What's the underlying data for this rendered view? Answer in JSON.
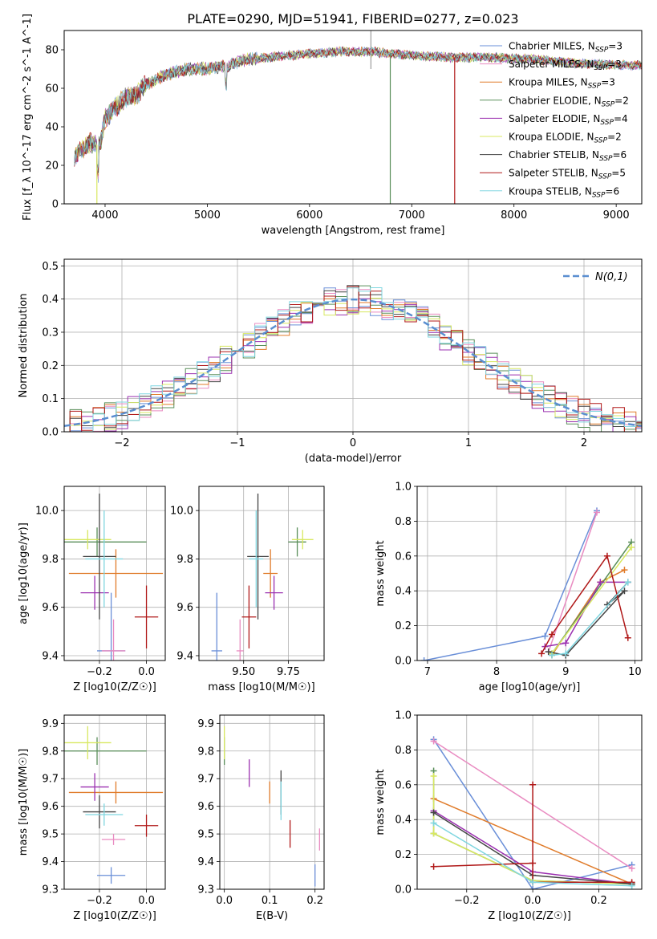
{
  "figure_title": "PLATE=0290, MJD=51941, FIBERID=0277, z=0.023",
  "legend": [
    {
      "label": "Chabrier MILES, N",
      "sub": "SSP",
      "tail": "=3",
      "color": "#6a8fd8"
    },
    {
      "label": "Salpeter MILES, N",
      "sub": "SSP",
      "tail": "=3",
      "color": "#e98bc1"
    },
    {
      "label": "Kroupa MILES, N",
      "sub": "SSP",
      "tail": "=3",
      "color": "#e07b2a"
    },
    {
      "label": "Chabrier ELODIE, N",
      "sub": "SSP",
      "tail": "=2",
      "color": "#5a8f5a"
    },
    {
      "label": "Salpeter ELODIE, N",
      "sub": "SSP",
      "tail": "=4",
      "color": "#9b30b0"
    },
    {
      "label": "Kroupa ELODIE, N",
      "sub": "SSP",
      "tail": "=2",
      "color": "#d8e860"
    },
    {
      "label": "Chabrier STELIB, N",
      "sub": "SSP",
      "tail": "=6",
      "color": "#444444"
    },
    {
      "label": "Salpeter STELIB, N",
      "sub": "SSP",
      "tail": "=5",
      "color": "#b01818"
    },
    {
      "label": "Kroupa STELIB, N",
      "sub": "SSP",
      "tail": "=6",
      "color": "#7fd6e0"
    }
  ],
  "chart_data": [
    {
      "id": "spectrum",
      "type": "line",
      "xlabel": "wavelength [Angstrom, rest frame]",
      "ylabel": "Flux [f_λ 10^-17 erg cm^-2 s^-1 A^-1]",
      "xlim": [
        3600,
        9250
      ],
      "ylim": [
        0,
        90
      ],
      "xticks": [
        4000,
        5000,
        6000,
        7000,
        8000,
        9000
      ],
      "yticks": [
        0,
        20,
        40,
        60,
        80
      ],
      "continuum": [
        [
          3700,
          25
        ],
        [
          3850,
          32
        ],
        [
          3950,
          30
        ],
        [
          4000,
          44
        ],
        [
          4100,
          50
        ],
        [
          4200,
          55
        ],
        [
          4300,
          56
        ],
        [
          4400,
          62
        ],
        [
          4600,
          67
        ],
        [
          4800,
          70
        ],
        [
          5000,
          70
        ],
        [
          5200,
          72
        ],
        [
          5400,
          75
        ],
        [
          5600,
          76
        ],
        [
          5800,
          77
        ],
        [
          6000,
          78
        ],
        [
          6300,
          79
        ],
        [
          6600,
          79
        ],
        [
          7000,
          77
        ],
        [
          7400,
          76
        ],
        [
          7800,
          76
        ],
        [
          8200,
          75
        ],
        [
          8600,
          73
        ],
        [
          9000,
          72
        ],
        [
          9250,
          72
        ]
      ],
      "drop_lines": [
        {
          "series": 5,
          "x": 3920
        },
        {
          "series": 3,
          "x": 6790
        },
        {
          "series": 7,
          "x": 7420
        }
      ]
    },
    {
      "id": "residual-histogram",
      "type": "histogram",
      "xlabel": "(data-model)/error",
      "ylabel": "Normed distribution",
      "xlim": [
        -2.5,
        2.5
      ],
      "ylim": [
        0,
        0.52
      ],
      "xticks": [
        -2,
        -1,
        0,
        1,
        2
      ],
      "xtick_labels": [
        "−2",
        "−1",
        "0",
        "1",
        "2"
      ],
      "yticks": [
        0,
        0.1,
        0.2,
        0.3,
        0.4,
        0.5
      ],
      "ytick_labels": [
        "0.0",
        "0.1",
        "0.2",
        "0.3",
        "0.4",
        "0.5"
      ],
      "reference_curve": {
        "name": "N(0,1)",
        "color": "#5a8ed0",
        "style": "dashed"
      },
      "bin_width": 0.1
    },
    {
      "id": "age-vs-Z",
      "type": "errorbar",
      "xlabel": "Z [log10(Z/Z☉)]",
      "ylabel": "age [log10(age/yr)]",
      "xlim": [
        -0.35,
        0.08
      ],
      "ylim": [
        9.38,
        10.1
      ],
      "xticks": [
        -0.2,
        0.0
      ],
      "xtick_labels": [
        "−0.2",
        "0.0"
      ],
      "yticks": [
        9.4,
        9.6,
        9.8,
        10.0
      ],
      "ytick_labels": [
        "9.4",
        "9.6",
        "9.8",
        "10.0"
      ],
      "points": [
        {
          "s": 0,
          "x": -0.15,
          "xerr": 0.06,
          "y": 9.42,
          "yerr": 0.24
        },
        {
          "s": 1,
          "x": -0.14,
          "xerr": 0.05,
          "y": 9.42,
          "yerr": 0.13
        },
        {
          "s": 2,
          "x": -0.13,
          "xerr": 0.2,
          "y": 9.74,
          "yerr": 0.1
        },
        {
          "s": 3,
          "x": -0.21,
          "xerr": 0.21,
          "y": 9.87,
          "yerr": 0.06
        },
        {
          "s": 4,
          "x": -0.22,
          "xerr": 0.06,
          "y": 9.66,
          "yerr": 0.07
        },
        {
          "s": 5,
          "x": -0.25,
          "xerr": 0.1,
          "y": 9.88,
          "yerr": 0.04
        },
        {
          "s": 6,
          "x": -0.2,
          "xerr": 0.07,
          "y": 9.81,
          "yerr": 0.26
        },
        {
          "s": 7,
          "x": 0.0,
          "xerr": 0.05,
          "y": 9.56,
          "yerr": 0.13
        },
        {
          "s": 8,
          "x": -0.18,
          "xerr": 0.08,
          "y": 9.8,
          "yerr": 0.2
        }
      ]
    },
    {
      "id": "age-vs-mass",
      "type": "errorbar",
      "xlabel": "mass [log10(M/M☉)]",
      "ylabel": "",
      "xlim": [
        9.25,
        9.95
      ],
      "ylim": [
        9.38,
        10.1
      ],
      "xticks": [
        9.5,
        9.75
      ],
      "xtick_labels": [
        "9.50",
        "9.75"
      ],
      "yticks": [
        9.4,
        9.6,
        9.8,
        10.0
      ],
      "ytick_labels": [
        "9.4",
        "9.6",
        "9.8",
        "10.0"
      ],
      "points": [
        {
          "s": 0,
          "x": 9.35,
          "xerr": 0.03,
          "y": 9.42,
          "yerr": 0.24
        },
        {
          "s": 1,
          "x": 9.48,
          "xerr": 0.02,
          "y": 9.42,
          "yerr": 0.13
        },
        {
          "s": 2,
          "x": 9.65,
          "xerr": 0.04,
          "y": 9.74,
          "yerr": 0.1
        },
        {
          "s": 3,
          "x": 9.8,
          "xerr": 0.05,
          "y": 9.87,
          "yerr": 0.06
        },
        {
          "s": 4,
          "x": 9.67,
          "xerr": 0.05,
          "y": 9.66,
          "yerr": 0.07
        },
        {
          "s": 5,
          "x": 9.83,
          "xerr": 0.06,
          "y": 9.88,
          "yerr": 0.04
        },
        {
          "s": 6,
          "x": 9.58,
          "xerr": 0.06,
          "y": 9.81,
          "yerr": 0.26
        },
        {
          "s": 7,
          "x": 9.53,
          "xerr": 0.04,
          "y": 9.56,
          "yerr": 0.13
        },
        {
          "s": 8,
          "x": 9.57,
          "xerr": 0.04,
          "y": 9.8,
          "yerr": 0.2
        }
      ]
    },
    {
      "id": "mass-weight-vs-age",
      "type": "line",
      "xlabel": "age [log10(age/yr)]",
      "ylabel": "mass weight",
      "xlim": [
        6.85,
        10.1
      ],
      "ylim": [
        0,
        1
      ],
      "xticks": [
        7,
        8,
        9,
        10
      ],
      "xtick_labels": [
        "7",
        "8",
        "9",
        "10"
      ],
      "yticks": [
        0,
        0.2,
        0.4,
        0.6,
        0.8,
        1.0
      ],
      "ytick_labels": [
        "0.0",
        "0.2",
        "0.4",
        "0.6",
        "0.8",
        "1.0"
      ],
      "series": [
        {
          "s": 0,
          "points": [
            [
              6.95,
              0.0
            ],
            [
              8.7,
              0.14
            ],
            [
              9.45,
              0.86
            ]
          ]
        },
        {
          "s": 1,
          "points": [
            [
              8.75,
              0.05
            ],
            [
              9.45,
              0.85
            ]
          ]
        },
        {
          "s": 2,
          "points": [
            [
              8.8,
              0.03
            ],
            [
              9.5,
              0.45
            ],
            [
              9.85,
              0.52
            ]
          ]
        },
        {
          "s": 3,
          "points": [
            [
              8.8,
              0.04
            ],
            [
              9.95,
              0.68
            ]
          ]
        },
        {
          "s": 4,
          "points": [
            [
              8.7,
              0.08
            ],
            [
              9.0,
              0.1
            ],
            [
              9.5,
              0.45
            ],
            [
              9.9,
              0.45
            ]
          ]
        },
        {
          "s": 5,
          "points": [
            [
              8.8,
              0.04
            ],
            [
              9.95,
              0.65
            ]
          ]
        },
        {
          "s": 6,
          "points": [
            [
              8.75,
              0.05
            ],
            [
              9.0,
              0.03
            ],
            [
              9.85,
              0.4
            ],
            [
              9.6,
              0.32
            ],
            [
              9.9,
              0.45
            ]
          ]
        },
        {
          "s": 7,
          "points": [
            [
              8.65,
              0.04
            ],
            [
              8.8,
              0.15
            ],
            [
              9.6,
              0.6
            ],
            [
              9.9,
              0.13
            ]
          ]
        },
        {
          "s": 8,
          "points": [
            [
              8.8,
              0.03
            ],
            [
              9.0,
              0.04
            ],
            [
              9.9,
              0.45
            ]
          ]
        }
      ]
    },
    {
      "id": "mass-vs-Z",
      "type": "errorbar",
      "xlabel": "Z [log10(Z/Z☉)]",
      "ylabel": "mass [log10(M/M☉)]",
      "xlim": [
        -0.35,
        0.08
      ],
      "ylim": [
        9.3,
        9.93
      ],
      "xticks": [
        -0.2,
        0.0
      ],
      "xtick_labels": [
        "−0.2",
        "0.0"
      ],
      "yticks": [
        9.3,
        9.4,
        9.5,
        9.6,
        9.7,
        9.8,
        9.9
      ],
      "ytick_labels": [
        "9.3",
        "9.4",
        "9.5",
        "9.6",
        "9.7",
        "9.8",
        "9.9"
      ],
      "points": [
        {
          "s": 0,
          "x": -0.15,
          "xerr": 0.06,
          "y": 9.35,
          "yerr": 0.03
        },
        {
          "s": 1,
          "x": -0.14,
          "xerr": 0.05,
          "y": 9.48,
          "yerr": 0.02
        },
        {
          "s": 2,
          "x": -0.13,
          "xerr": 0.2,
          "y": 9.65,
          "yerr": 0.04
        },
        {
          "s": 3,
          "x": -0.21,
          "xerr": 0.21,
          "y": 9.8,
          "yerr": 0.05
        },
        {
          "s": 4,
          "x": -0.22,
          "xerr": 0.06,
          "y": 9.67,
          "yerr": 0.05
        },
        {
          "s": 5,
          "x": -0.25,
          "xerr": 0.1,
          "y": 9.83,
          "yerr": 0.06
        },
        {
          "s": 6,
          "x": -0.2,
          "xerr": 0.07,
          "y": 9.58,
          "yerr": 0.06
        },
        {
          "s": 7,
          "x": 0.0,
          "xerr": 0.05,
          "y": 9.53,
          "yerr": 0.04
        },
        {
          "s": 8,
          "x": -0.18,
          "xerr": 0.08,
          "y": 9.57,
          "yerr": 0.04
        }
      ]
    },
    {
      "id": "mass-vs-EBV",
      "type": "errorbar",
      "xlabel": "E(B-V)",
      "ylabel": "",
      "xlim": [
        -0.01,
        0.22
      ],
      "ylim": [
        9.3,
        9.93
      ],
      "xticks": [
        0.0,
        0.1,
        0.2
      ],
      "xtick_labels": [
        "0.0",
        "0.1",
        "0.2"
      ],
      "yticks": [
        9.3,
        9.4,
        9.5,
        9.6,
        9.7,
        9.8,
        9.9
      ],
      "ytick_labels": [
        "9.3",
        "9.4",
        "9.5",
        "9.6",
        "9.7",
        "9.8",
        "9.9"
      ],
      "points": [
        {
          "s": 0,
          "x": 0.2,
          "xerr": 0,
          "y": 9.35,
          "yerr": 0.04
        },
        {
          "s": 1,
          "x": 0.21,
          "xerr": 0,
          "y": 9.48,
          "yerr": 0.04
        },
        {
          "s": 2,
          "x": 0.1,
          "xerr": 0,
          "y": 9.65,
          "yerr": 0.04
        },
        {
          "s": 3,
          "x": 0.0,
          "xerr": 0,
          "y": 9.8,
          "yerr": 0.05
        },
        {
          "s": 4,
          "x": 0.055,
          "xerr": 0,
          "y": 9.72,
          "yerr": 0.05
        },
        {
          "s": 5,
          "x": 0.0,
          "xerr": 0,
          "y": 9.83,
          "yerr": 0.06
        },
        {
          "s": 6,
          "x": 0.125,
          "xerr": 0,
          "y": 9.65,
          "yerr": 0.08
        },
        {
          "s": 7,
          "x": 0.145,
          "xerr": 0,
          "y": 9.5,
          "yerr": 0.05
        },
        {
          "s": 8,
          "x": 0.125,
          "xerr": 0,
          "y": 9.62,
          "yerr": 0.07
        }
      ]
    },
    {
      "id": "mass-weight-vs-Z",
      "type": "line",
      "xlabel": "Z [log10(Z/Z☉)]",
      "ylabel": "mass weight",
      "xlim": [
        -0.35,
        0.33
      ],
      "ylim": [
        0,
        1
      ],
      "xticks": [
        -0.2,
        0.0,
        0.2
      ],
      "xtick_labels": [
        "−0.2",
        "0.0",
        "0.2"
      ],
      "yticks": [
        0,
        0.2,
        0.4,
        0.6,
        0.8,
        1.0
      ],
      "ytick_labels": [
        "0.0",
        "0.2",
        "0.4",
        "0.6",
        "0.8",
        "1.0"
      ],
      "series": [
        {
          "s": 0,
          "points": [
            [
              -0.3,
              0.86
            ],
            [
              0.0,
              0.0
            ],
            [
              0.3,
              0.14
            ]
          ]
        },
        {
          "s": 1,
          "points": [
            [
              -0.3,
              0.85
            ],
            [
              0.3,
              0.12
            ]
          ]
        },
        {
          "s": 2,
          "points": [
            [
              -0.3,
              0.52
            ],
            [
              0.3,
              0.03
            ]
          ]
        },
        {
          "s": 3,
          "points": [
            [
              -0.3,
              0.68
            ],
            [
              -0.3,
              0.32
            ],
            [
              0.0,
              0.05
            ],
            [
              0.3,
              0.03
            ]
          ]
        },
        {
          "s": 4,
          "points": [
            [
              -0.3,
              0.45
            ],
            [
              0.0,
              0.1
            ],
            [
              0.3,
              0.03
            ]
          ]
        },
        {
          "s": 5,
          "points": [
            [
              -0.3,
              0.65
            ],
            [
              -0.3,
              0.32
            ],
            [
              0.0,
              0.05
            ],
            [
              0.3,
              0.03
            ]
          ]
        },
        {
          "s": 6,
          "points": [
            [
              -0.3,
              0.44
            ],
            [
              0.0,
              0.08
            ],
            [
              0.3,
              0.03
            ]
          ]
        },
        {
          "s": 7,
          "points": [
            [
              -0.3,
              0.13
            ],
            [
              0.0,
              0.15
            ],
            [
              0.0,
              0.6
            ],
            [
              0.0,
              0.04
            ],
            [
              0.3,
              0.04
            ]
          ]
        },
        {
          "s": 8,
          "points": [
            [
              -0.3,
              0.38
            ],
            [
              0.0,
              0.04
            ],
            [
              0.3,
              0.02
            ]
          ]
        }
      ]
    }
  ]
}
